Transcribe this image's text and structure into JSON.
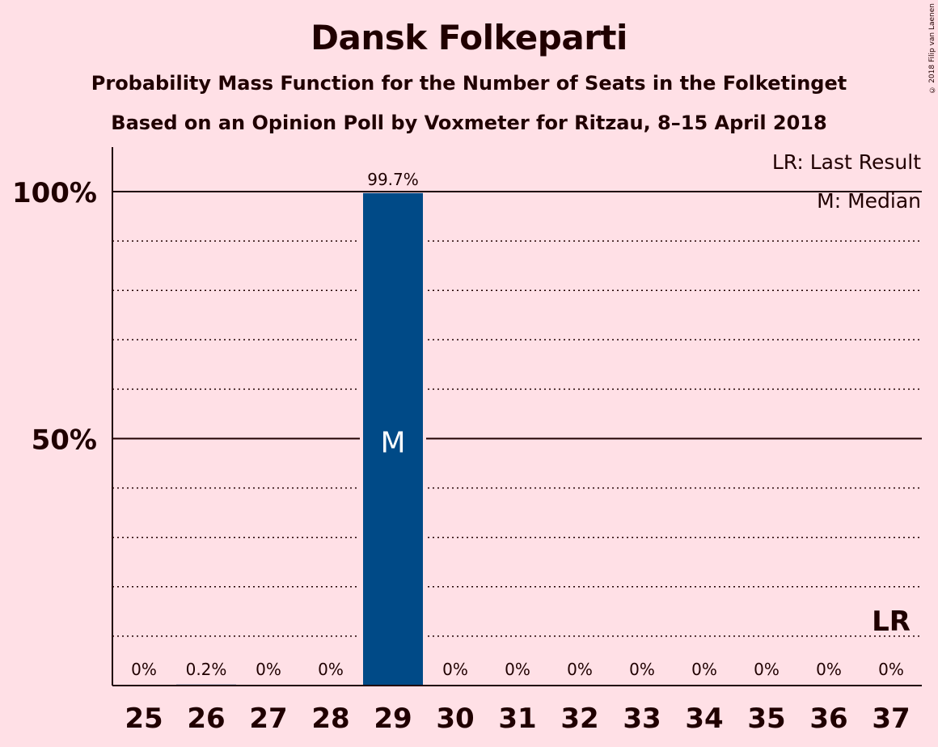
{
  "title": "Dansk Folkeparti",
  "subtitle1": "Probability Mass Function for the Number of Seats in the Folketinget",
  "subtitle2": "Based on an Opinion Poll by Voxmeter for Ritzau, 8–15 April 2018",
  "copyright": "© 2018 Filip van Laenen",
  "legend": {
    "last_result": "LR: Last Result",
    "median": "M: Median"
  },
  "colors": {
    "background": "#ffe0e6",
    "bar": "#004a87",
    "text": "#200000"
  },
  "chart_data": {
    "type": "bar",
    "categories": [
      "25",
      "26",
      "27",
      "28",
      "29",
      "30",
      "31",
      "32",
      "33",
      "34",
      "35",
      "36",
      "37"
    ],
    "values": [
      0,
      0.2,
      0,
      0,
      99.7,
      0,
      0,
      0,
      0,
      0,
      0,
      0,
      0
    ],
    "value_labels": [
      "0%",
      "0.2%",
      "0%",
      "0%",
      "99.7%",
      "0%",
      "0%",
      "0%",
      "0%",
      "0%",
      "0%",
      "0%",
      "0%"
    ],
    "ylim": [
      0,
      110
    ],
    "y_ticks": [
      {
        "value": 50,
        "label": "50%"
      },
      {
        "value": 100,
        "label": "100%"
      }
    ],
    "minor_gridlines": [
      10,
      20,
      30,
      40,
      60,
      70,
      80,
      90
    ],
    "median": {
      "category": "29",
      "label": "M"
    },
    "last_result": {
      "category": "37",
      "label": "LR"
    },
    "legend_position": "top-right"
  }
}
